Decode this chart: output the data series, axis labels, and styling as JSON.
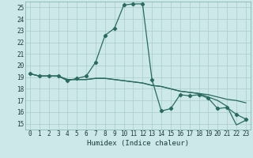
{
  "xlabel": "Humidex (Indice chaleur)",
  "bg_color": "#cce8e8",
  "grid_color": "#aacccc",
  "line_color": "#2a6b60",
  "xlim": [
    -0.5,
    23.5
  ],
  "ylim": [
    14.5,
    25.5
  ],
  "xticks": [
    0,
    1,
    2,
    3,
    4,
    5,
    6,
    7,
    8,
    9,
    10,
    11,
    12,
    13,
    14,
    15,
    16,
    17,
    18,
    19,
    20,
    21,
    22,
    23
  ],
  "yticks": [
    15,
    16,
    17,
    18,
    19,
    20,
    21,
    22,
    23,
    24,
    25
  ],
  "line1_x": [
    0,
    1,
    2,
    3,
    4,
    5,
    6,
    7,
    8,
    9,
    10,
    11,
    12,
    13,
    14,
    15,
    16,
    17,
    18,
    19,
    20,
    21,
    22,
    23
  ],
  "line1_y": [
    19.3,
    19.1,
    19.1,
    19.1,
    18.7,
    18.9,
    19.1,
    20.3,
    22.6,
    23.2,
    25.2,
    25.3,
    25.3,
    18.8,
    16.1,
    16.3,
    17.5,
    17.4,
    17.5,
    17.2,
    16.3,
    16.4,
    15.8,
    15.4
  ],
  "line2_x": [
    0,
    1,
    2,
    3,
    4,
    5,
    6,
    7,
    8,
    9,
    10,
    11,
    12,
    13,
    14,
    15,
    16,
    17,
    18,
    19,
    20,
    21,
    22,
    23
  ],
  "line2_y": [
    19.3,
    19.1,
    19.1,
    19.1,
    18.8,
    18.8,
    18.8,
    18.9,
    18.9,
    18.8,
    18.7,
    18.6,
    18.5,
    18.3,
    18.2,
    18.0,
    17.8,
    17.7,
    17.6,
    17.5,
    17.3,
    17.1,
    17.0,
    16.8
  ],
  "line3_x": [
    0,
    1,
    2,
    3,
    4,
    5,
    6,
    7,
    8,
    9,
    10,
    11,
    12,
    13,
    14,
    15,
    16,
    17,
    18,
    19,
    20,
    21,
    22,
    23
  ],
  "line3_y": [
    19.3,
    19.1,
    19.1,
    19.1,
    18.8,
    18.8,
    18.8,
    18.9,
    18.9,
    18.8,
    18.7,
    18.6,
    18.5,
    18.3,
    18.2,
    18.0,
    17.8,
    17.7,
    17.6,
    17.3,
    17.0,
    16.5,
    14.9,
    15.3
  ]
}
